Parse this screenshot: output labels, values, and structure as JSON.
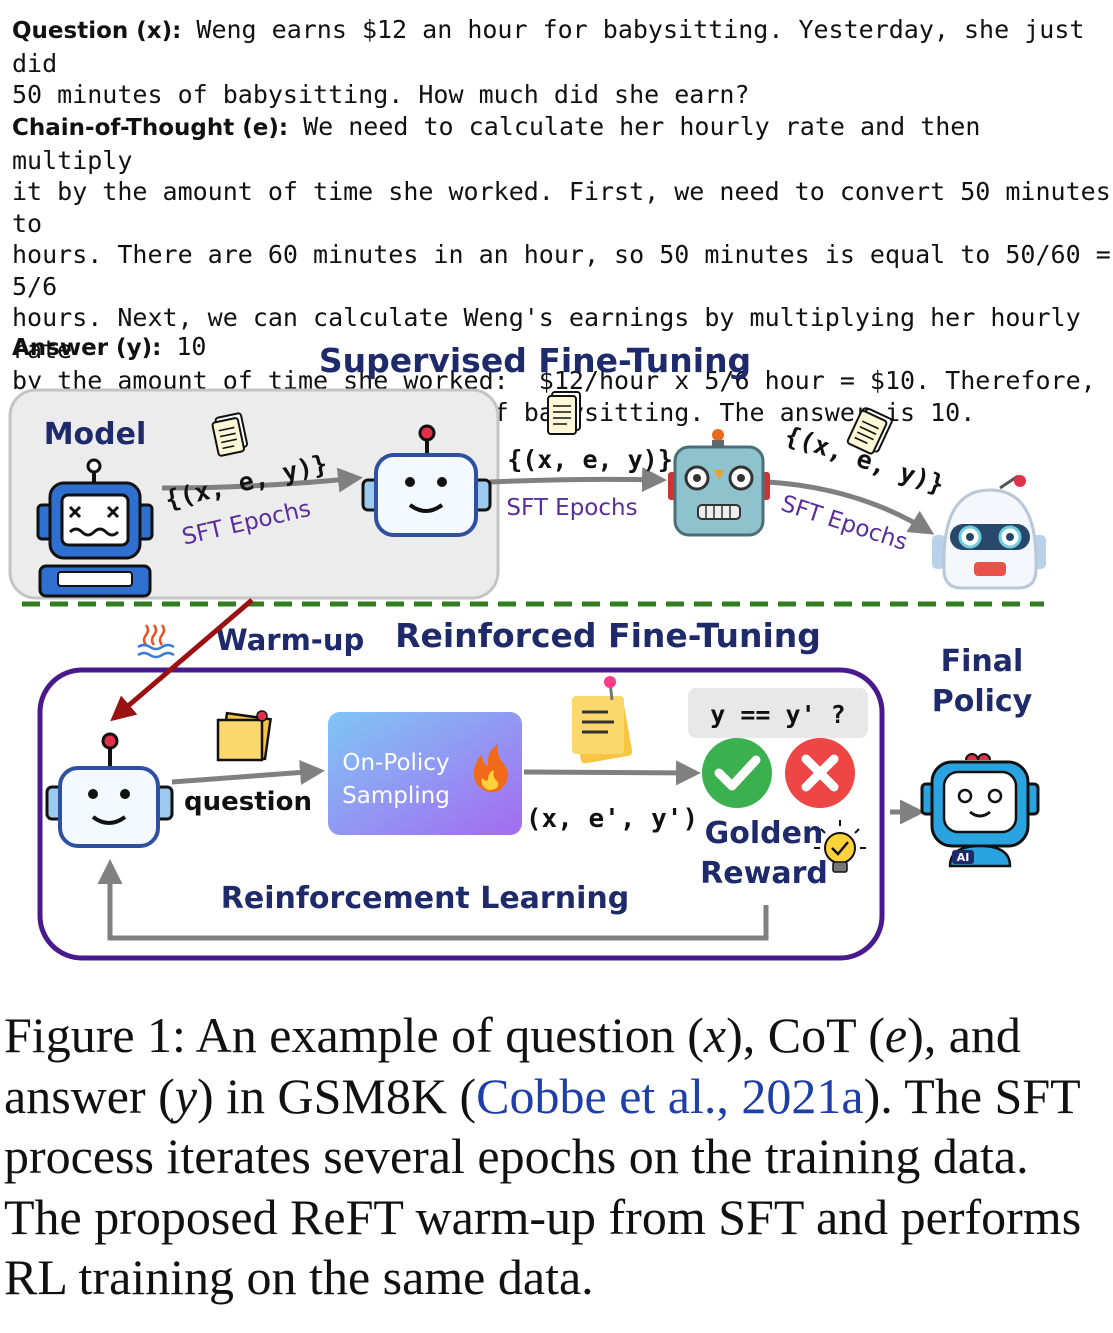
{
  "example": {
    "question_label": "Question (x):",
    "question_text": " Weng earns $12 an hour for babysitting. Yesterday, she just did\n50 minutes of babysitting. How much did she earn?",
    "cot_label": "Chain-of-Thought (e):",
    "cot_text": " We need to calculate her hourly rate and then multiply\nit by the amount of time she worked. First, we need to convert 50 minutes to\nhours. There are 60 minutes in an hour, so 50 minutes is equal to 50/60 = 5/6\nhours. Next, we can calculate Weng's earnings by multiplying her hourly rate\nby the amount of time she worked:  $12/hour x 5/6 hour = $10. Therefore,\nWeng earned $10 for 50 minutes of babysitting. The answer is 10.",
    "answer_label": "Answer (y):",
    "answer_text": " 10"
  },
  "sft": {
    "title": "Supervised Fine-Tuning",
    "model_label": "Model",
    "tuple": "{(x, e, y)}",
    "epochs": "SFT Epochs"
  },
  "reft": {
    "warmup": "Warm-up",
    "title": "Reinforced Fine-Tuning",
    "final_policy": [
      "Final",
      "Policy"
    ],
    "question": "question",
    "sampling": [
      "On-Policy",
      "Sampling"
    ],
    "sampled_tuple": "(x, e', y')",
    "check": "y == y' ?",
    "golden_reward": [
      "Golden",
      "Reward"
    ],
    "rl": "Reinforcement Learning",
    "ai_badge": "AI"
  },
  "caption": {
    "part1": "Figure 1:  An example of question (",
    "x": "x",
    "part2": "), CoT (",
    "e": "e",
    "part3": "), and answer (",
    "y": "y",
    "part4": ") in GSM8K (",
    "cite": "Cobbe et al., 2021a",
    "part5": "). The SFT process iterates several epochs on the training data. The proposed ReFT warm-up from SFT and performs RL training on the same data."
  },
  "colors": {
    "navy": "#1f2a6b",
    "purple": "#5a2d9c",
    "box_border": "#4a1a8c",
    "dashed_green": "#2f7d1e",
    "warmup_arrow": "#9b1010",
    "citation": "#1f3fa8"
  }
}
